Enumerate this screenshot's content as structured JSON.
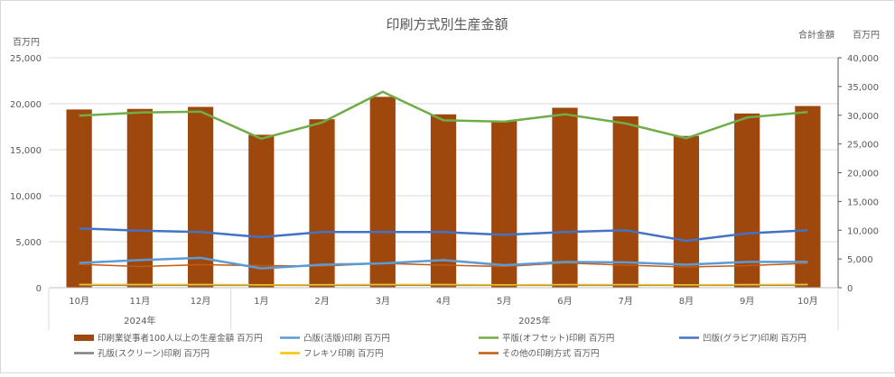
{
  "chart_data": {
    "type": "bar+line",
    "title": "印刷方式別生産金額",
    "left_unit": "百万円",
    "right_unit": "百万円",
    "right_axis_label": "合計金額",
    "ylim_left": [
      0,
      25000
    ],
    "ylim_right": [
      0,
      40000
    ],
    "yticks_left": [
      "0",
      "5,000",
      "10,000",
      "15,000",
      "20,000",
      "25,000"
    ],
    "yticks_right": [
      "0",
      "5,000",
      "10,000",
      "15,000",
      "20,000",
      "25,000",
      "30,000",
      "35,000",
      "40,000"
    ],
    "categories": [
      "10月",
      "11月",
      "12月",
      "1月",
      "2月",
      "3月",
      "4月",
      "5月",
      "6月",
      "7月",
      "8月",
      "9月",
      "10月"
    ],
    "year_groups": [
      {
        "label": "2024年",
        "start": 0,
        "end": 2
      },
      {
        "label": "2025年",
        "start": 3,
        "end": 12
      }
    ],
    "bar_series": {
      "name": "印刷業従事者100人以上の生産金額 百万円",
      "color": "#9e480e",
      "axis": "right",
      "values": [
        31000,
        31100,
        31450,
        26600,
        29300,
        33200,
        30150,
        29000,
        31300,
        29800,
        26400,
        30300,
        31600
      ]
    },
    "line_series": [
      {
        "name": "凸版(活版)印刷 百万円",
        "color": "#5b9bd5",
        "axis": "left",
        "values": [
          2700,
          3000,
          3250,
          2100,
          2500,
          2650,
          3000,
          2450,
          2800,
          2750,
          2500,
          2800,
          2800
        ]
      },
      {
        "name": "平版(オフセット)印刷 百万円",
        "color": "#70ad47",
        "axis": "left",
        "values": [
          18700,
          19050,
          19150,
          16200,
          17950,
          21300,
          18200,
          18050,
          18850,
          17850,
          16250,
          18500,
          19100
        ]
      },
      {
        "name": "凹版(グラビア)印刷 百万円",
        "color": "#4472c4",
        "axis": "left",
        "values": [
          6450,
          6200,
          6050,
          5500,
          6050,
          6050,
          6050,
          5750,
          6050,
          6250,
          5100,
          5900,
          6250
        ]
      },
      {
        "name": "孔版(スクリーン)印刷 百万円",
        "color": "#7f7f7f",
        "axis": "left",
        "values": [
          250,
          250,
          250,
          250,
          250,
          250,
          250,
          250,
          250,
          250,
          250,
          250,
          250
        ]
      },
      {
        "name": "フレキソ印刷 百万円",
        "color": "#ffc000",
        "axis": "left",
        "values": [
          350,
          350,
          350,
          320,
          330,
          350,
          350,
          320,
          340,
          340,
          310,
          340,
          360
        ]
      },
      {
        "name": "その他の印刷方式 百万円",
        "color": "#c55a11",
        "axis": "left",
        "values": [
          2550,
          2300,
          2500,
          2400,
          2350,
          2650,
          2450,
          2300,
          2700,
          2450,
          2250,
          2400,
          2650
        ]
      }
    ],
    "legend_position": "bottom",
    "grid": true
  }
}
